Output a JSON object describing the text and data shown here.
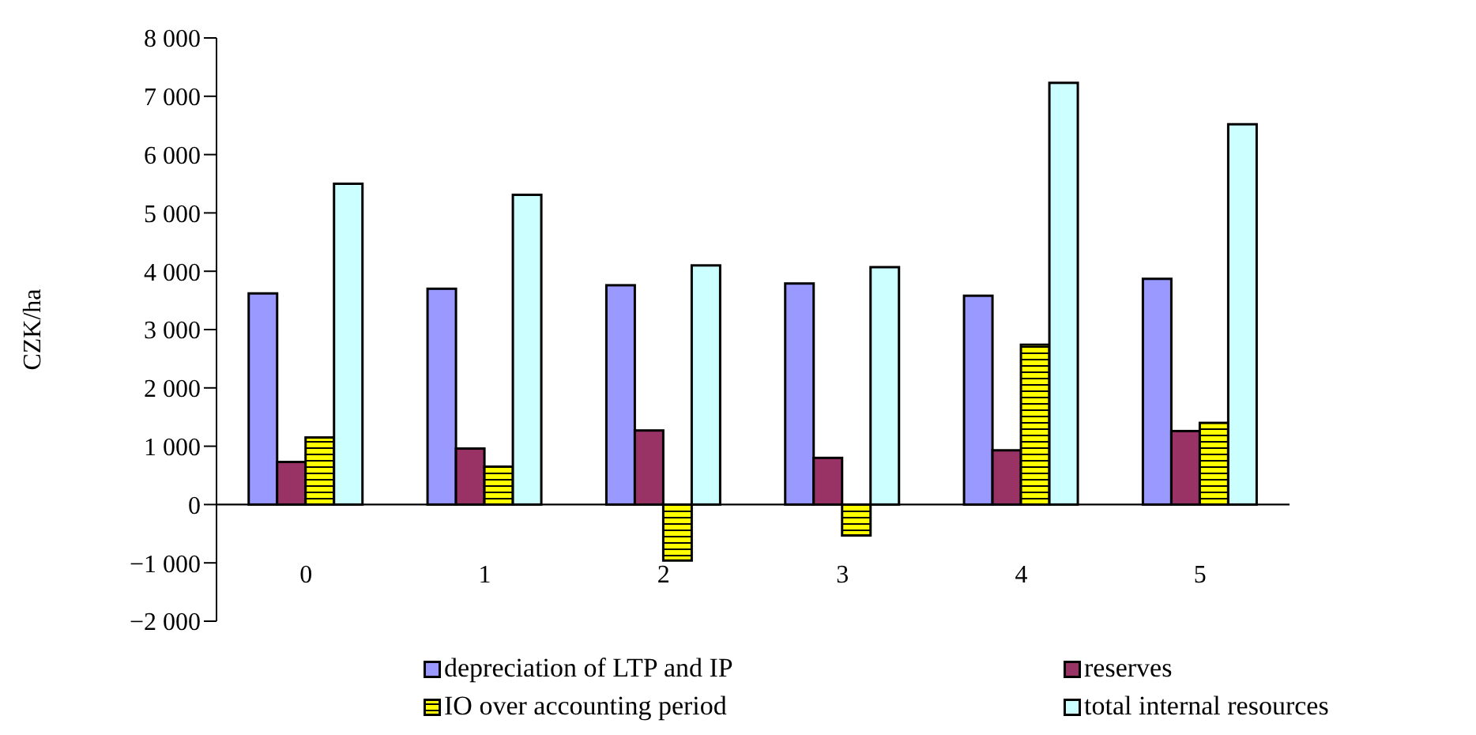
{
  "chart_data": {
    "type": "bar",
    "ylabel": "CZK/ha",
    "categories": [
      "0",
      "1",
      "2",
      "3",
      "4",
      "5"
    ],
    "series": [
      {
        "name": "depreciation of LTP and IP",
        "color": "#9999ff",
        "values": [
          3620,
          3700,
          3760,
          3790,
          3580,
          3870
        ]
      },
      {
        "name": "reserves",
        "color": "#993366",
        "values": [
          730,
          960,
          1270,
          800,
          930,
          1260
        ]
      },
      {
        "name": "IO over accounting period",
        "color": "#ffff00",
        "values": [
          1150,
          650,
          -960,
          -530,
          2740,
          1400
        ]
      },
      {
        "name": "total internal resources",
        "color": "#ccffff",
        "values": [
          5500,
          5310,
          4100,
          4070,
          7230,
          6520
        ]
      }
    ],
    "ylim": [
      -2000,
      8000
    ],
    "yticks": [
      {
        "value": -2000,
        "label": "−2 000"
      },
      {
        "value": -1000,
        "label": "−1 000"
      },
      0,
      {
        "value": 1000,
        "label": "1 000"
      },
      {
        "value": 2000,
        "label": "2 000"
      },
      {
        "value": 3000,
        "label": "3 000"
      },
      {
        "value": 4000,
        "label": "4 000"
      },
      {
        "value": 5000,
        "label": "5 000"
      },
      {
        "value": 6000,
        "label": "6 000"
      },
      {
        "value": 7000,
        "label": "7 000"
      },
      {
        "value": 8000,
        "label": "8 000"
      }
    ],
    "grid": false,
    "legend": "bottom"
  }
}
